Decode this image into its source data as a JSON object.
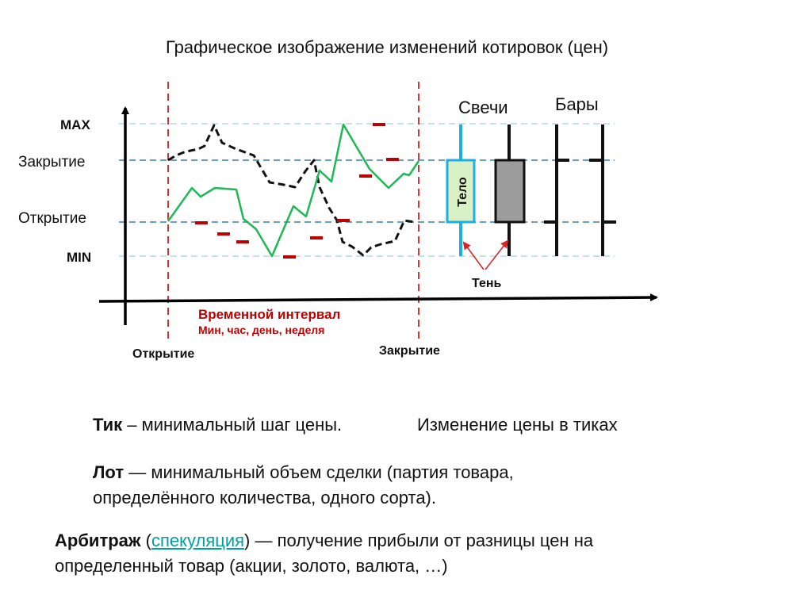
{
  "title": "Графическое изображение изменений котировок (цен)",
  "diagram": {
    "y_labels": {
      "max": "MAX",
      "close": "Закрытие",
      "open": "Открытие",
      "min": "MIN"
    },
    "candles_label": "Свечи",
    "bars_label": "Бары",
    "body_label": "Тело",
    "shadow_label": "Тень",
    "interval_title": "Временной интервал",
    "interval_sub": "Мин, час, день, неделя",
    "x_open_label": "Открытие",
    "x_close_label": "Закрытие",
    "colors": {
      "green_line": "#1db954",
      "black_dashed": "#111111",
      "red_markers": "#c00000",
      "guides": "#aed4dc",
      "candle_blue": "#1eaee0",
      "candle_body_light": "#d8f0c4",
      "candle_body_gray": "#9c9c9c"
    }
  },
  "tick": {
    "term": "Тик",
    "definition": " – минимальный шаг цены.",
    "extra": "Изменение цены в тиках"
  },
  "lot": {
    "term": "Лот",
    "line1": " — минимальный объем сделки (партия товара,",
    "line2": "определённого количества, одного сорта)."
  },
  "arbitrage": {
    "term": "Арбитраж",
    "open_paren": " (",
    "link": "спекуляция",
    "rest": ") — получение прибыли от разницы цен на",
    "line2": "определенный товар (акции, золото, валюта, …)"
  }
}
